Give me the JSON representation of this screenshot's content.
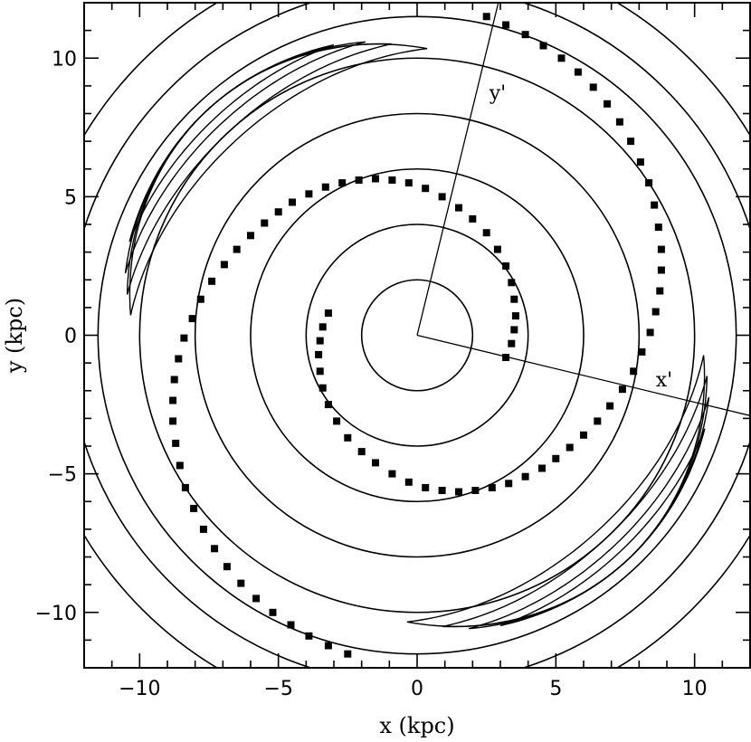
{
  "chart_data": {
    "type": "scatter",
    "xlabel": "x (kpc)",
    "ylabel": "y (kpc)",
    "xlim": [
      -12,
      12
    ],
    "ylim": [
      -12,
      12
    ],
    "x_ticks": [
      -10,
      -5,
      0,
      5,
      10
    ],
    "y_ticks": [
      -10,
      -5,
      0,
      5,
      10
    ],
    "x_tick_labels": [
      "−10",
      "−5",
      "0",
      "5",
      "10"
    ],
    "y_tick_labels": [
      "−10",
      "−5",
      "0",
      "5",
      "10"
    ],
    "grid": false,
    "circle_contours_radius_kpc": [
      2,
      4,
      6,
      8,
      10
    ],
    "outer_contour_radii_kpc": [
      11.5,
      12.6,
      14.0
    ],
    "rotated_axes": {
      "x_label": "x'",
      "y_label": "y'",
      "y_axis_endpoint": [
        3,
        12.3
      ],
      "x_axis_endpoint": [
        12,
        -2.9
      ],
      "x_label_pos": [
        8.6,
        -1.85
      ],
      "y_label_pos": [
        2.6,
        8.5
      ]
    },
    "arms": [
      {
        "points": [
          [
            -3.2,
            0.8
          ],
          [
            -3.4,
            0.3
          ],
          [
            -3.5,
            -0.2
          ],
          [
            -3.55,
            -0.7
          ],
          [
            -3.5,
            -1.3
          ],
          [
            -3.4,
            -1.9
          ],
          [
            -3.2,
            -2.5
          ],
          [
            -2.9,
            -3.1
          ],
          [
            -2.5,
            -3.7
          ],
          [
            -2.0,
            -4.2
          ],
          [
            -1.5,
            -4.6
          ],
          [
            -0.9,
            -5.0
          ],
          [
            -0.3,
            -5.3
          ],
          [
            0.3,
            -5.5
          ],
          [
            0.9,
            -5.6
          ],
          [
            1.5,
            -5.65
          ],
          [
            2.1,
            -5.6
          ],
          [
            2.7,
            -5.5
          ],
          [
            3.3,
            -5.35
          ],
          [
            3.9,
            -5.1
          ],
          [
            4.5,
            -4.8
          ],
          [
            5.0,
            -4.45
          ],
          [
            5.5,
            -4.05
          ],
          [
            6.0,
            -3.6
          ],
          [
            6.5,
            -3.1
          ],
          [
            6.95,
            -2.55
          ],
          [
            7.4,
            -1.95
          ],
          [
            7.8,
            -1.3
          ],
          [
            8.1,
            -0.6
          ],
          [
            8.4,
            0.1
          ],
          [
            8.6,
            0.85
          ],
          [
            8.75,
            1.6
          ],
          [
            8.8,
            2.35
          ],
          [
            8.8,
            3.1
          ],
          [
            8.7,
            3.9
          ],
          [
            8.55,
            4.7
          ],
          [
            8.35,
            5.5
          ],
          [
            8.05,
            6.25
          ],
          [
            7.7,
            7.0
          ],
          [
            7.3,
            7.7
          ],
          [
            6.85,
            8.35
          ],
          [
            6.35,
            8.95
          ],
          [
            5.8,
            9.5
          ],
          [
            5.2,
            10.0
          ],
          [
            4.55,
            10.45
          ],
          [
            3.9,
            10.85
          ],
          [
            3.2,
            11.2
          ],
          [
            2.5,
            11.5
          ]
        ]
      },
      {
        "points": [
          [
            3.2,
            -0.8
          ],
          [
            3.4,
            -0.3
          ],
          [
            3.5,
            0.2
          ],
          [
            3.55,
            0.7
          ],
          [
            3.5,
            1.3
          ],
          [
            3.4,
            1.9
          ],
          [
            3.2,
            2.5
          ],
          [
            2.9,
            3.1
          ],
          [
            2.5,
            3.7
          ],
          [
            2.0,
            4.2
          ],
          [
            1.5,
            4.6
          ],
          [
            0.9,
            5.0
          ],
          [
            0.3,
            5.3
          ],
          [
            -0.3,
            5.5
          ],
          [
            -0.9,
            5.6
          ],
          [
            -1.5,
            5.65
          ],
          [
            -2.1,
            5.6
          ],
          [
            -2.7,
            5.5
          ],
          [
            -3.3,
            5.35
          ],
          [
            -3.9,
            5.1
          ],
          [
            -4.5,
            4.8
          ],
          [
            -5.0,
            4.45
          ],
          [
            -5.5,
            4.05
          ],
          [
            -6.0,
            3.6
          ],
          [
            -6.5,
            3.1
          ],
          [
            -6.95,
            2.55
          ],
          [
            -7.4,
            1.95
          ],
          [
            -7.8,
            1.3
          ],
          [
            -8.1,
            0.6
          ],
          [
            -8.4,
            -0.1
          ],
          [
            -8.6,
            -0.85
          ],
          [
            -8.75,
            -1.6
          ],
          [
            -8.8,
            -2.35
          ],
          [
            -8.8,
            -3.1
          ],
          [
            -8.7,
            -3.9
          ],
          [
            -8.55,
            -4.7
          ],
          [
            -8.35,
            -5.5
          ],
          [
            -8.05,
            -6.25
          ],
          [
            -7.7,
            -7.0
          ],
          [
            -7.3,
            -7.7
          ],
          [
            -6.85,
            -8.35
          ],
          [
            -6.35,
            -8.95
          ],
          [
            -5.8,
            -9.5
          ],
          [
            -5.2,
            -10.0
          ],
          [
            -4.55,
            -10.45
          ],
          [
            -3.9,
            -10.85
          ],
          [
            -3.2,
            -11.2
          ],
          [
            -2.5,
            -11.5
          ]
        ]
      }
    ]
  }
}
